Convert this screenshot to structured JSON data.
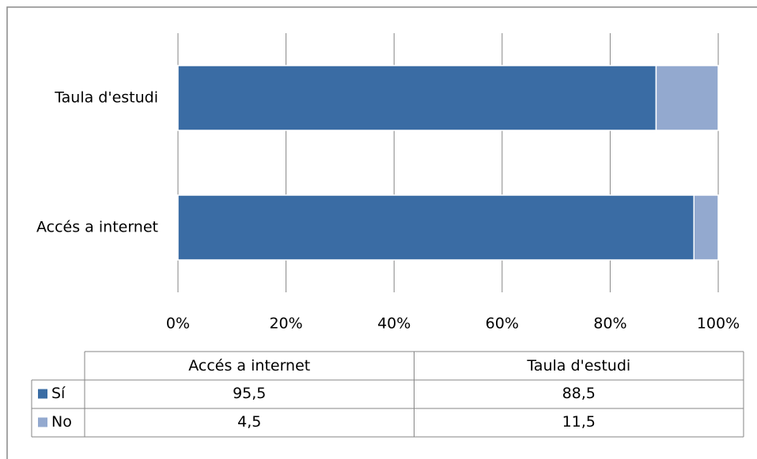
{
  "chart_data": {
    "type": "stacked-bar-horizontal",
    "categories": [
      "Accés a internet",
      "Taula d'estudi"
    ],
    "series": [
      {
        "name": "Sí",
        "color": "#3a6ca4",
        "values": [
          95.5,
          88.5
        ],
        "value_labels": [
          "95,5",
          "88,5"
        ]
      },
      {
        "name": "No",
        "color": "#93a9cf",
        "values": [
          4.5,
          11.5
        ],
        "value_labels": [
          "4,5",
          "11,5"
        ]
      }
    ],
    "xlim": [
      0,
      100
    ],
    "xticks": [
      {
        "value": 0,
        "label": "0%"
      },
      {
        "value": 20,
        "label": "20%"
      },
      {
        "value": 40,
        "label": "40%"
      },
      {
        "value": 60,
        "label": "60%"
      },
      {
        "value": 80,
        "label": "80%"
      },
      {
        "value": 100,
        "label": "100%"
      }
    ],
    "grid": true,
    "data_table": true
  }
}
